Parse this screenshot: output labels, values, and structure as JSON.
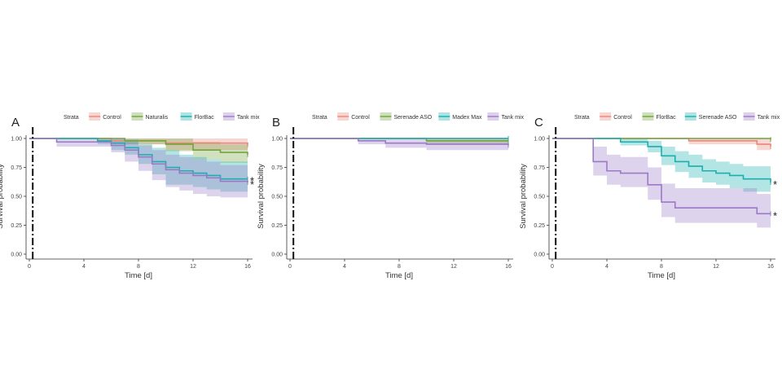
{
  "figure": {
    "colors": {
      "Control": "#E8877B",
      "Naturalis": "#72A43C",
      "FlorBac": "#72A43C",
      "Serenade ASO": "#1BAFAF",
      "Madex Max": "#1BAFAF",
      "Tank mix": "#9C79C6"
    }
  },
  "chart_data": [
    {
      "panel": "A",
      "type": "line",
      "step": true,
      "legend_title": "Strata",
      "legend_placement": "top",
      "xlabel": "Time [d]",
      "ylabel": "Survival probability",
      "xlim": [
        0,
        16
      ],
      "ylim": [
        0,
        1
      ],
      "xticks": [
        0,
        4,
        8,
        12,
        16
      ],
      "yticks": [
        "0.00",
        "0.25",
        "0.50",
        "0.75",
        "1.00"
      ],
      "grid": false,
      "marker_day": 0.25,
      "series": [
        {
          "name": "Control",
          "colorKey": "Control",
          "x": [
            0,
            6,
            10,
            16
          ],
          "y": [
            1.0,
            0.98,
            0.96,
            0.94
          ],
          "lower": [
            1.0,
            0.95,
            0.9,
            0.88
          ],
          "upper": [
            1.0,
            1.0,
            1.0,
            1.0
          ]
        },
        {
          "name": "Naturalis",
          "colorKey": "Naturalis",
          "x": [
            0,
            7,
            10,
            12,
            14,
            16
          ],
          "y": [
            1.0,
            0.98,
            0.95,
            0.9,
            0.88,
            0.86
          ],
          "lower": [
            1.0,
            0.95,
            0.89,
            0.82,
            0.79,
            0.77
          ],
          "upper": [
            1.0,
            1.0,
            1.0,
            0.97,
            0.95,
            0.94
          ]
        },
        {
          "name": "FlorBac",
          "colorKey": "Serenade ASO",
          "x": [
            0,
            5,
            6,
            7,
            8,
            9,
            10,
            11,
            12,
            13,
            14,
            16
          ],
          "y": [
            1.0,
            0.98,
            0.96,
            0.92,
            0.86,
            0.8,
            0.75,
            0.72,
            0.7,
            0.68,
            0.65,
            0.65
          ],
          "lower": [
            1.0,
            0.95,
            0.9,
            0.86,
            0.78,
            0.69,
            0.6,
            0.6,
            0.58,
            0.56,
            0.54,
            0.54
          ],
          "upper": [
            1.0,
            1.0,
            1.0,
            0.99,
            0.95,
            0.92,
            0.9,
            0.86,
            0.84,
            0.82,
            0.8,
            0.8
          ],
          "asterisk": true
        },
        {
          "name": "Tank mix",
          "colorKey": "Tank mix",
          "x": [
            0,
            2,
            6,
            7,
            8,
            9,
            10,
            11,
            12,
            13,
            14,
            16
          ],
          "y": [
            1.0,
            0.97,
            0.94,
            0.9,
            0.84,
            0.78,
            0.73,
            0.7,
            0.68,
            0.66,
            0.63,
            0.62
          ],
          "lower": [
            1.0,
            0.93,
            0.88,
            0.8,
            0.72,
            0.64,
            0.58,
            0.55,
            0.52,
            0.5,
            0.49,
            0.48
          ],
          "upper": [
            1.0,
            1.0,
            0.99,
            0.97,
            0.94,
            0.9,
            0.86,
            0.84,
            0.82,
            0.8,
            0.77,
            0.76
          ],
          "asterisk": true
        }
      ]
    },
    {
      "panel": "B",
      "type": "line",
      "step": true,
      "legend_title": "Strata",
      "legend_placement": "top",
      "xlabel": "Time [d]",
      "ylabel": "Survival probability",
      "xlim": [
        0,
        16
      ],
      "ylim": [
        0,
        1
      ],
      "xticks": [
        0,
        4,
        8,
        12,
        16
      ],
      "yticks": [
        "0.00",
        "0.25",
        "0.50",
        "0.75",
        "1.00"
      ],
      "grid": false,
      "marker_day": 0.25,
      "series": [
        {
          "name": "Control",
          "colorKey": "Control",
          "x": [
            0,
            16
          ],
          "y": [
            1.0,
            1.0
          ],
          "lower": [
            1.0,
            1.0
          ],
          "upper": [
            1.0,
            1.0
          ]
        },
        {
          "name": "Serenade ASO",
          "colorKey": "FlorBac",
          "x": [
            0,
            10,
            16
          ],
          "y": [
            1.0,
            0.98,
            0.98
          ],
          "lower": [
            1.0,
            0.95,
            0.95
          ],
          "upper": [
            1.0,
            1.0,
            1.0
          ]
        },
        {
          "name": "Madex Max",
          "colorKey": "Madex Max",
          "x": [
            0,
            16
          ],
          "y": [
            1.0,
            1.0
          ],
          "lower": [
            1.0,
            1.0
          ],
          "upper": [
            1.0,
            1.0
          ]
        },
        {
          "name": "Tank mix",
          "colorKey": "Tank mix",
          "x": [
            0,
            5,
            7,
            10,
            16
          ],
          "y": [
            1.0,
            0.98,
            0.96,
            0.95,
            0.94
          ],
          "lower": [
            1.0,
            0.95,
            0.92,
            0.9,
            0.89
          ],
          "upper": [
            1.0,
            1.0,
            1.0,
            0.99,
            0.98
          ]
        }
      ]
    },
    {
      "panel": "C",
      "type": "line",
      "step": true,
      "legend_title": "Strata",
      "legend_placement": "top",
      "xlabel": "Time [d]",
      "ylabel": "Survival probability",
      "xlim": [
        0,
        16
      ],
      "ylim": [
        0,
        1
      ],
      "xticks": [
        0,
        4,
        8,
        12,
        16
      ],
      "yticks": [
        "0.00",
        "0.25",
        "0.50",
        "0.75",
        "1.00"
      ],
      "grid": false,
      "marker_day": 0.25,
      "series": [
        {
          "name": "Control",
          "colorKey": "Control",
          "x": [
            0,
            10,
            15,
            16
          ],
          "y": [
            1.0,
            0.98,
            0.95,
            0.93
          ],
          "lower": [
            1.0,
            0.95,
            0.9,
            0.88
          ],
          "upper": [
            1.0,
            1.0,
            1.0,
            0.99
          ]
        },
        {
          "name": "FlorBac",
          "colorKey": "FlorBac",
          "x": [
            0,
            16
          ],
          "y": [
            1.0,
            0.99
          ],
          "lower": [
            1.0,
            0.97
          ],
          "upper": [
            1.0,
            1.0
          ]
        },
        {
          "name": "Serenade ASO",
          "colorKey": "Serenade ASO",
          "x": [
            0,
            5,
            7,
            8,
            9,
            10,
            11,
            12,
            13,
            14,
            16
          ],
          "y": [
            1.0,
            0.97,
            0.93,
            0.85,
            0.8,
            0.76,
            0.72,
            0.7,
            0.68,
            0.65,
            0.62
          ],
          "lower": [
            1.0,
            0.94,
            0.88,
            0.77,
            0.71,
            0.66,
            0.62,
            0.6,
            0.57,
            0.54,
            0.51
          ],
          "upper": [
            1.0,
            1.0,
            0.98,
            0.93,
            0.89,
            0.86,
            0.82,
            0.8,
            0.78,
            0.76,
            0.74
          ],
          "asterisk": true
        },
        {
          "name": "Tank mix",
          "colorKey": "Tank mix",
          "x": [
            0,
            3,
            4,
            5,
            7,
            8,
            9,
            13,
            15,
            16
          ],
          "y": [
            1.0,
            0.8,
            0.72,
            0.7,
            0.6,
            0.45,
            0.4,
            0.4,
            0.35,
            0.35
          ],
          "lower": [
            1.0,
            0.68,
            0.6,
            0.58,
            0.47,
            0.32,
            0.27,
            0.27,
            0.23,
            0.23
          ],
          "upper": [
            1.0,
            0.93,
            0.86,
            0.84,
            0.75,
            0.61,
            0.57,
            0.57,
            0.52,
            0.52
          ],
          "asterisk": true
        }
      ]
    }
  ]
}
